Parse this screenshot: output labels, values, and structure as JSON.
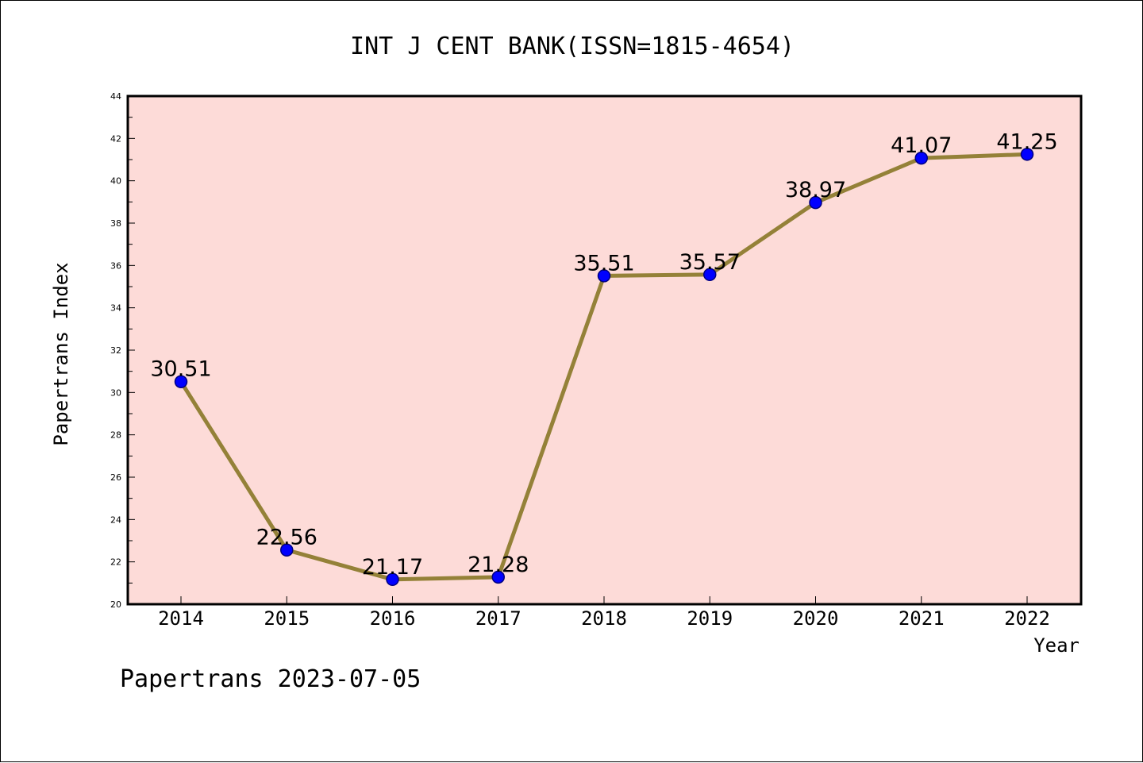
{
  "chart_data": {
    "type": "line",
    "title": "INT J CENT BANK(ISSN=1815-4654)",
    "xlabel": "Year",
    "ylabel": "Papertrans Index",
    "footer": "Papertrans 2023-07-05",
    "x": [
      "2014",
      "2015",
      "2016",
      "2017",
      "2018",
      "2019",
      "2020",
      "2021",
      "2022"
    ],
    "series": [
      {
        "values": [
          30.51,
          22.56,
          21.17,
          21.28,
          35.51,
          35.57,
          38.97,
          41.07,
          41.25
        ],
        "data_labels": [
          "30.51",
          "22.56",
          "21.17",
          "21.28",
          "35.51",
          "35.57",
          "38.97",
          "41.07",
          "41.25"
        ]
      }
    ],
    "ylim": [
      20,
      44
    ],
    "yticks": [
      "20",
      "22",
      "24",
      "26",
      "28",
      "30",
      "32",
      "34",
      "36",
      "38",
      "40",
      "42",
      "44"
    ],
    "grid": false,
    "colors": {
      "plot_background": "#fddbd8",
      "line": "#948138",
      "marker": "#0000ff",
      "marker_edge": "#000080",
      "axis": "#000000"
    }
  }
}
